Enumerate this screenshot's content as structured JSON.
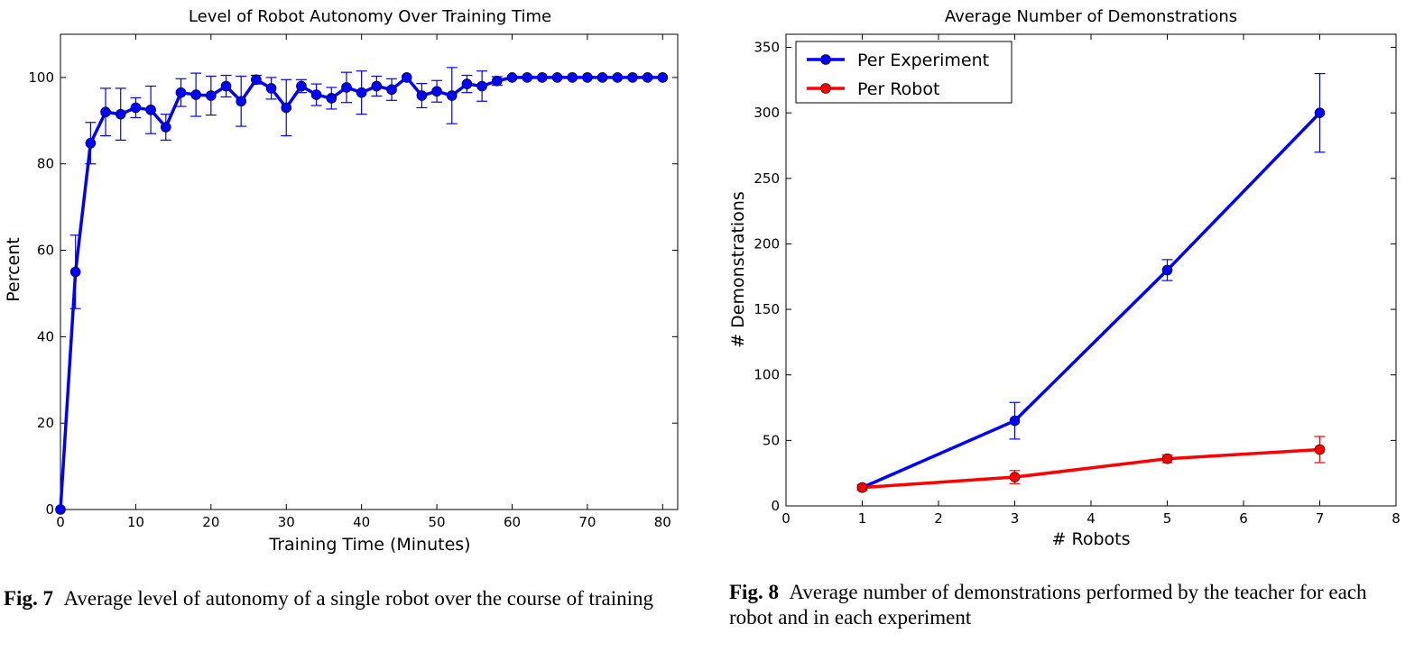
{
  "chart_data": [
    {
      "type": "line",
      "title": "Level of Robot Autonomy Over Training Time",
      "xlabel": "Training Time (Minutes)",
      "ylabel": "Percent",
      "xlim": [
        0,
        82
      ],
      "ylim": [
        0,
        110
      ],
      "xticks": [
        0,
        10,
        20,
        30,
        40,
        50,
        60,
        70,
        80
      ],
      "yticks": [
        0,
        20,
        40,
        60,
        80,
        100
      ],
      "grid": false,
      "series": [
        {
          "color": "#0000ff",
          "x": [
            0,
            2,
            4,
            6,
            8,
            10,
            12,
            14,
            16,
            18,
            20,
            22,
            24,
            26,
            28,
            30,
            32,
            34,
            36,
            38,
            40,
            42,
            44,
            46,
            48,
            50,
            52,
            54,
            56,
            58,
            60,
            62,
            64,
            66,
            68,
            70,
            72,
            74,
            76,
            78,
            80
          ],
          "y": [
            0,
            55,
            84.8,
            92,
            91.5,
            93,
            92.5,
            88.5,
            96.5,
            96,
            95.8,
            98,
            94.5,
            99.5,
            97.5,
            93,
            98,
            96,
            95.2,
            97.7,
            96.5,
            98,
            97.2,
            100,
            95.8,
            96.8,
            95.8,
            98.5,
            98,
            99.2,
            100,
            100,
            100,
            100,
            100,
            100,
            100,
            100,
            100,
            100,
            100
          ],
          "err": [
            0,
            8.5,
            4.8,
            5.5,
            6,
            2.3,
            5.5,
            3,
            3.2,
            5,
            4.5,
            2.5,
            5.8,
            1,
            2.5,
            6.5,
            1.5,
            2.5,
            2.5,
            3.5,
            5,
            2.3,
            2.5,
            0,
            2.8,
            2.5,
            6.5,
            2,
            3.5,
            1,
            0,
            0,
            0,
            0,
            0,
            0,
            0,
            0,
            0,
            0,
            0
          ]
        }
      ]
    },
    {
      "type": "line",
      "title": "Average Number of Demonstrations",
      "xlabel": "# Robots",
      "ylabel": "# Demonstrations",
      "xlim": [
        0,
        8
      ],
      "ylim": [
        0,
        360
      ],
      "xticks": [
        0,
        1,
        2,
        3,
        4,
        5,
        6,
        7,
        8
      ],
      "yticks": [
        0,
        50,
        100,
        150,
        200,
        250,
        300,
        350
      ],
      "grid": false,
      "legend": "top-left",
      "series": [
        {
          "name": "Per Experiment",
          "color": "#0000ff",
          "x": [
            1,
            3,
            5,
            7
          ],
          "y": [
            14,
            65,
            180,
            300
          ],
          "err": [
            2,
            14,
            8,
            30
          ]
        },
        {
          "name": "Per Robot",
          "color": "#ff0000",
          "x": [
            1,
            3,
            5,
            7
          ],
          "y": [
            14,
            22,
            36,
            43
          ],
          "err": [
            2,
            5,
            3,
            10
          ]
        }
      ]
    }
  ],
  "captions": [
    {
      "label": "Fig. 7",
      "text": "Average level of autonomy of a single robot over the course of training"
    },
    {
      "label": "Fig. 8",
      "text": "Average number of demonstrations performed by the teacher for each robot and in each experiment"
    }
  ]
}
